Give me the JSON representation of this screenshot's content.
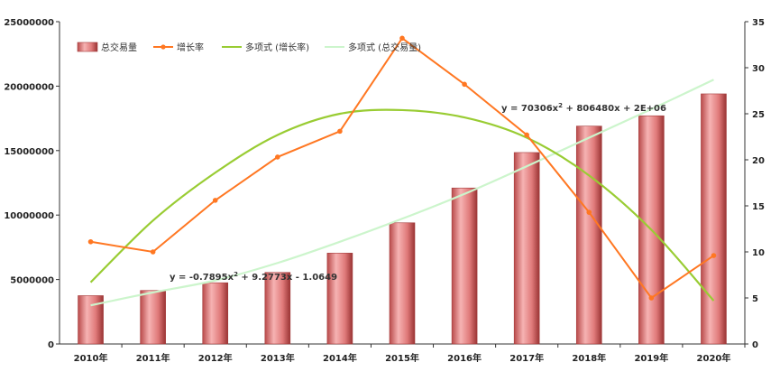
{
  "chart_data": {
    "type": "bar",
    "categories": [
      "2010年",
      "2011年",
      "2012年",
      "2013年",
      "2014年",
      "2015年",
      "2016年",
      "2017年",
      "2018年",
      "2019年",
      "2020年"
    ],
    "series": [
      {
        "name": "总交易量",
        "type": "bar",
        "axis": "left",
        "values": [
          3750000,
          4150000,
          4750000,
          5550000,
          7050000,
          9400000,
          12100000,
          14850000,
          16900000,
          17700000,
          19400000
        ]
      },
      {
        "name": "增长率",
        "type": "line",
        "axis": "right",
        "values": [
          11.1,
          10.0,
          15.6,
          20.3,
          23.1,
          33.2,
          28.2,
          22.7,
          14.3,
          5.0,
          9.6
        ]
      },
      {
        "name": "多项式 (增长率)",
        "type": "trendline",
        "axis": "right",
        "values": [
          6.7,
          13.4,
          18.6,
          22.7,
          25.0,
          25.4,
          24.6,
          22.4,
          18.3,
          12.4,
          4.7
        ]
      },
      {
        "name": "多项式 (总交易量)",
        "type": "trendline",
        "axis": "right",
        "values": [
          4.2,
          5.6,
          6.9,
          8.8,
          11.1,
          13.6,
          16.3,
          19.3,
          22.4,
          25.5,
          28.7
        ]
      }
    ],
    "left_axis": {
      "ylim": [
        0,
        25000000
      ],
      "ticks": [
        "0",
        "5000000",
        "10000000",
        "15000000",
        "20000000",
        "25000000"
      ]
    },
    "right_axis": {
      "ylim": [
        0,
        35
      ],
      "ticks": [
        "0",
        "5",
        "10",
        "15",
        "20",
        "25",
        "30",
        "35"
      ]
    },
    "annotations": [
      {
        "text_main": "y = 70306x",
        "sup": "2",
        "text_rest": " + 806480x + 2E+06"
      },
      {
        "text_main": "y = -0.7895x",
        "sup": "2",
        "text_rest": " + 9.2773x - 1.0649"
      }
    ],
    "colors": {
      "bar": "#f2a0a0",
      "bar_side": "#a43c3c",
      "line": "#ff7722",
      "poly_rate": "#99cc33",
      "poly_volume": "#ccf5cc"
    },
    "legend_position": "top-left",
    "grid": false,
    "title": "",
    "xlabel": "",
    "ylabel": ""
  }
}
